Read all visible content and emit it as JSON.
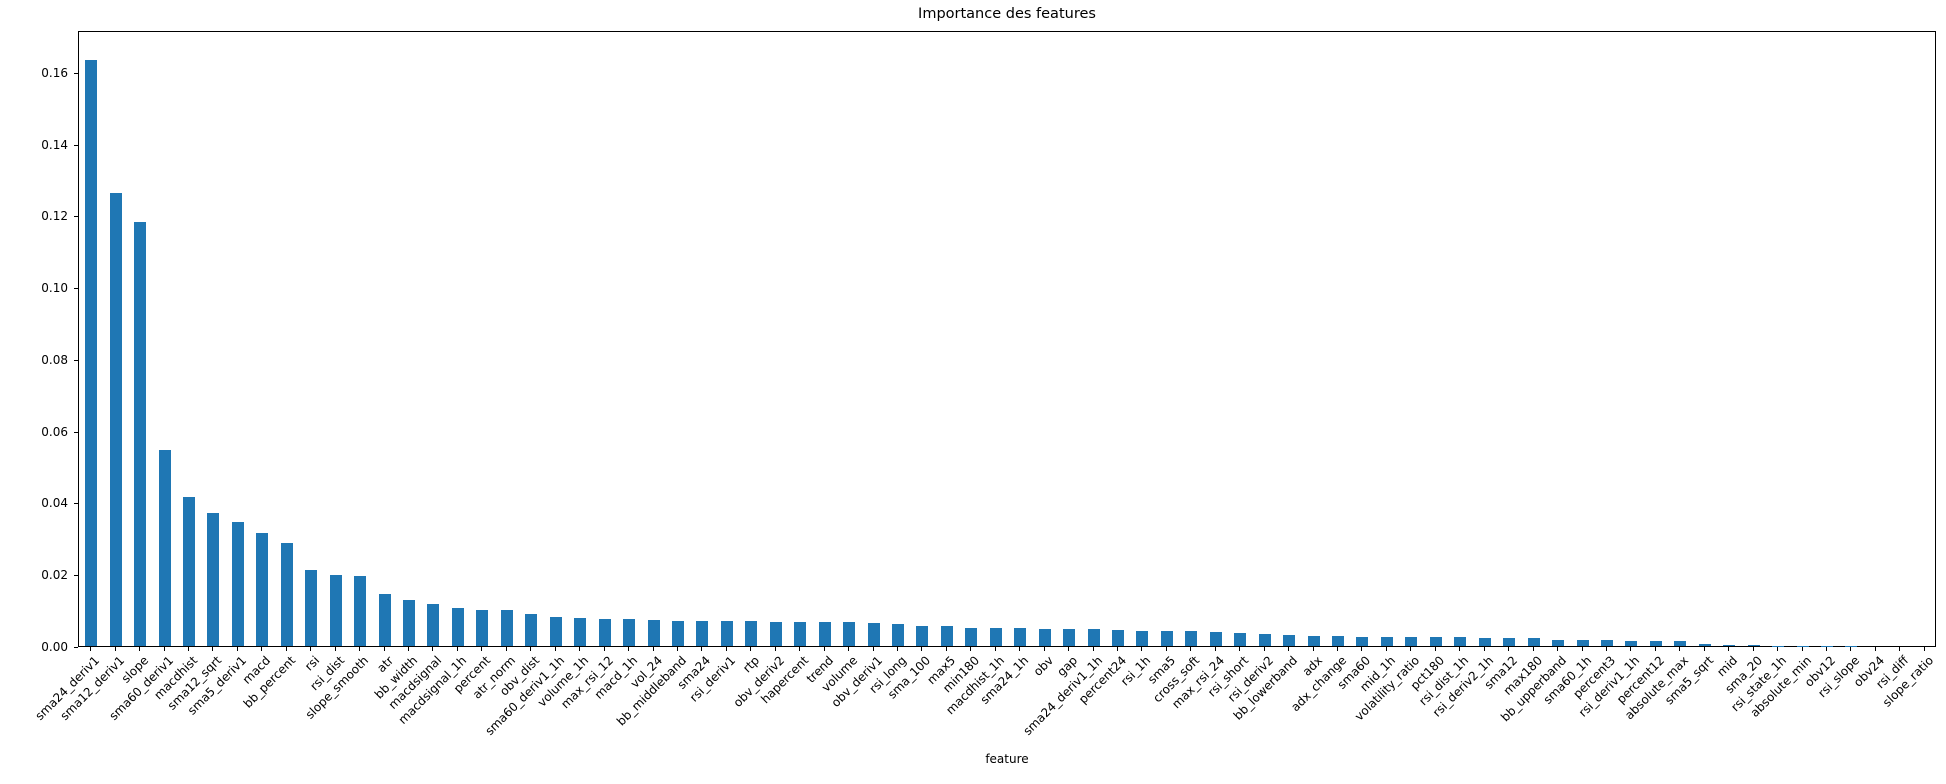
{
  "chart_data": {
    "type": "bar",
    "title": "Importance des features",
    "xlabel": "feature",
    "ylabel": "",
    "ylim": [
      0,
      0.1717
    ],
    "yticks": [
      "0.00",
      "0.02",
      "0.04",
      "0.06",
      "0.08",
      "0.10",
      "0.12",
      "0.14",
      "0.16"
    ],
    "ytick_values": [
      0.0,
      0.02,
      0.04,
      0.06,
      0.08,
      0.1,
      0.12,
      0.14,
      0.16
    ],
    "grid": false,
    "legend": "none",
    "bar_color": "#1f77b4",
    "categories": [
      "sma24_deriv1",
      "sma12_deriv1",
      "slope",
      "sma60_deriv1",
      "macdhist",
      "sma12_sqrt",
      "sma5_deriv1",
      "macd",
      "bb_percent",
      "rsi",
      "rsi_dist",
      "slope_smooth",
      "atr",
      "bb_width",
      "macdsignal",
      "macdsignal_1h",
      "percent",
      "atr_norm",
      "obv_dist",
      "sma60_deriv1_1h",
      "volume_1h",
      "max_rsi_12",
      "macd_1h",
      "vol_24",
      "bb_middleband",
      "sma24",
      "rsi_deriv1",
      "rtp",
      "obv_deriv2",
      "hapercent",
      "trend",
      "volume",
      "obv_deriv1",
      "rsi_long",
      "sma_100",
      "max5",
      "min180",
      "macdhist_1h",
      "sma24_1h",
      "obv",
      "gap",
      "sma24_deriv1_1h",
      "percent24",
      "rsi_1h",
      "sma5",
      "cross_soft",
      "max_rsi_24",
      "rsi_short",
      "rsi_deriv2",
      "bb_lowerband",
      "adx",
      "adx_change",
      "sma60",
      "mid_1h",
      "volatility_ratio",
      "pct180",
      "rsi_dist_1h",
      "rsi_deriv2_1h",
      "sma12",
      "max180",
      "bb_upperband",
      "sma60_1h",
      "percent3",
      "rsi_deriv1_1h",
      "percent12",
      "absolute_max",
      "sma5_sqrt",
      "mid",
      "sma_20",
      "rsi_state_1h",
      "absolute_min",
      "obv12",
      "rsi_slope",
      "obv24",
      "rsi_diff",
      "slope_ratio"
    ],
    "values": [
      0.1633,
      0.1262,
      0.1181,
      0.0546,
      0.0415,
      0.0371,
      0.0346,
      0.0315,
      0.0287,
      0.0213,
      0.0197,
      0.0195,
      0.0145,
      0.0128,
      0.0118,
      0.0105,
      0.0101,
      0.0099,
      0.009,
      0.0082,
      0.0078,
      0.0076,
      0.0074,
      0.0072,
      0.0071,
      0.007,
      0.0069,
      0.0069,
      0.0068,
      0.0068,
      0.0067,
      0.0067,
      0.0063,
      0.0062,
      0.0057,
      0.0055,
      0.0051,
      0.005,
      0.005,
      0.0048,
      0.0048,
      0.0047,
      0.0046,
      0.0043,
      0.0043,
      0.0042,
      0.0038,
      0.0037,
      0.0033,
      0.003,
      0.0029,
      0.0027,
      0.0026,
      0.0026,
      0.0025,
      0.0025,
      0.0024,
      0.0023,
      0.0021,
      0.0021,
      0.0018,
      0.0018,
      0.0017,
      0.0014,
      0.0013,
      0.0013,
      0.0006,
      0.0002,
      0.0002,
      0.0001,
      0.0001,
      0.0001,
      0.0001,
      0.0,
      0.0,
      0.0
    ]
  }
}
